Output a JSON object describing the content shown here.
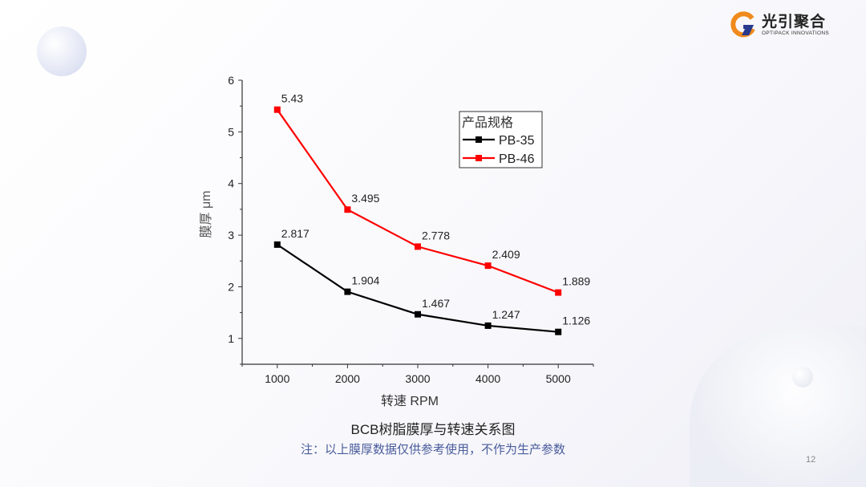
{
  "logo": {
    "cn": "光引聚合",
    "en": "OPTIPACK INNOVATIONS"
  },
  "chart_data": {
    "type": "line",
    "title": "BCB树脂膜厚与转速关系图",
    "xlabel": "转速 RPM",
    "ylabel": "膜厚 μm",
    "x": [
      1000,
      2000,
      3000,
      4000,
      5000
    ],
    "xlim": [
      500,
      5500
    ],
    "ylim": [
      0.5,
      6
    ],
    "xticks": [
      1000,
      2000,
      3000,
      4000,
      5000
    ],
    "yticks": [
      1,
      2,
      3,
      4,
      5,
      6
    ],
    "legend_title": "产品规格",
    "legend_position": "top-right",
    "series": [
      {
        "name": "PB-35",
        "color": "#000000",
        "values": [
          2.817,
          1.904,
          1.467,
          1.247,
          1.126
        ],
        "labels": [
          "2.817",
          "1.904",
          "1.467",
          "1.247",
          "1.126"
        ]
      },
      {
        "name": "PB-46",
        "color": "#ff0000",
        "values": [
          5.43,
          3.495,
          2.778,
          2.409,
          1.889
        ],
        "labels": [
          "5.43",
          "3.495",
          "2.778",
          "2.409",
          "1.889"
        ]
      }
    ]
  },
  "note": "注：以上膜厚数据仅供参考使用，不作为生产参数",
  "page_number": "12"
}
